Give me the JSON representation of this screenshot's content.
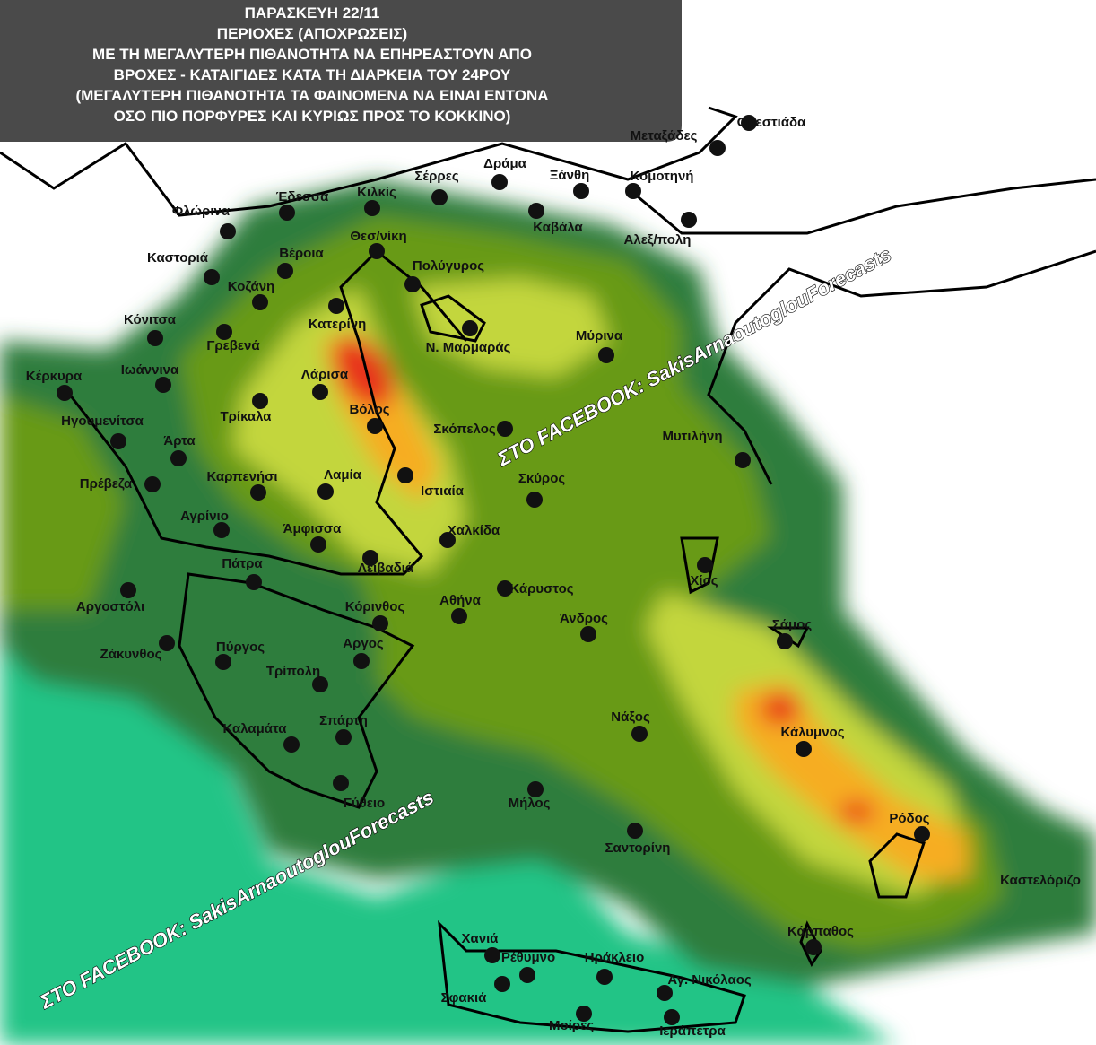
{
  "header": {
    "lines": [
      "ΠΑΡΑΣΚΕΥΗ  22/11",
      "ΠΕΡΙΟΧΕΣ (ΑΠΟΧΡΩΣΕΙΣ)",
      "ΜΕ ΤΗ ΜΕΓΑΛΥΤΕΡΗ ΠΙΘΑΝΟΤΗΤΑ ΝΑ ΕΠΗΡΕΑΣΤΟΥΝ ΑΠΟ",
      "ΒΡΟΧΕΣ - ΚΑΤΑΙΓΙΔΕΣ ΚΑΤΑ ΤΗ ΔΙΑΡΚΕΙΑ ΤΟΥ 24ΡΟΥ",
      "(ΜΕΓΑΛΥΤΕΡΗ ΠΙΘΑΝΟΤΗΤΑ ΤΑ ΦΑΙΝΟΜΕΝΑ ΝΑ ΕΙΝΑΙ ΕΝΤΟΝΑ",
      "ΟΣΟ ΠΙΟ ΠΟΡΦΥΡΕΣ ΚΑΙ ΚΥΡΙΩΣ ΠΡΟΣ ΤΟ ΚΟΚΚΙΝΟ)"
    ]
  },
  "cities": [
    {
      "label": "Μεταξάδες"
    },
    {
      "label": "Ορεστιάδα"
    },
    {
      "label": "Σέρρες"
    },
    {
      "label": "Δράμα"
    },
    {
      "label": "Ξάνθη"
    },
    {
      "label": "Κομοτηνή"
    },
    {
      "label": "Κιλκίς"
    },
    {
      "label": "Έδεσσα"
    },
    {
      "label": "Φλώρινα"
    },
    {
      "label": "Καβάλα"
    },
    {
      "label": "Αλεξ/πολη"
    },
    {
      "label": "Θεσ/νίκη"
    },
    {
      "label": "Βέροια"
    },
    {
      "label": "Καστοριά"
    },
    {
      "label": "Πολύγυρος"
    },
    {
      "label": "Κοζάνη"
    },
    {
      "label": "Κόνιτσα"
    },
    {
      "label": "Κατερίνη"
    },
    {
      "label": "Γρεβενά"
    },
    {
      "label": "Ν. Μαρμαράς"
    },
    {
      "label": "Μύρινα"
    },
    {
      "label": "Ιωάννινα"
    },
    {
      "label": "Κέρκυρα"
    },
    {
      "label": "Λάρισα"
    },
    {
      "label": "Βόλος"
    },
    {
      "label": "Τρίκαλα"
    },
    {
      "label": "Ηγουμενίτσα"
    },
    {
      "label": "Σκόπελος"
    },
    {
      "label": "Μυτιλήνη"
    },
    {
      "label": "Άρτα"
    },
    {
      "label": "Πρέβεζα"
    },
    {
      "label": "Καρπενήσι"
    },
    {
      "label": "Λαμία"
    },
    {
      "label": "Ιστιαία"
    },
    {
      "label": "Σκύρος"
    },
    {
      "label": "Αγρίνιο"
    },
    {
      "label": "Άμφισσα"
    },
    {
      "label": "Χαλκίδα"
    },
    {
      "label": "Πάτρα"
    },
    {
      "label": "Λειβαδιά"
    },
    {
      "label": "Χίος"
    },
    {
      "label": "Κάρυστος"
    },
    {
      "label": "Αργοστόλι"
    },
    {
      "label": "Κόρινθος"
    },
    {
      "label": "Αθήνα"
    },
    {
      "label": "Άνδρος"
    },
    {
      "label": "Σάμος"
    },
    {
      "label": "Ζάκυνθος"
    },
    {
      "label": "Πύργος"
    },
    {
      "label": "Αργος"
    },
    {
      "label": "Τρίπολη"
    },
    {
      "label": "Νάξος"
    },
    {
      "label": "Σπάρτη"
    },
    {
      "label": "Καλαμάτα"
    },
    {
      "label": "Κάλυμνος"
    },
    {
      "label": "Γύθειο"
    },
    {
      "label": "Μήλος"
    },
    {
      "label": "Ρόδος"
    },
    {
      "label": "Σαντορίνη"
    },
    {
      "label": "Καστελόριζο"
    },
    {
      "label": "Κάρπαθος"
    },
    {
      "label": "Χανιά"
    },
    {
      "label": "Ρέθυμνο"
    },
    {
      "label": "Ηράκλειο"
    },
    {
      "label": "Αγ. Νικόλαος"
    },
    {
      "label": "Σφακιά"
    },
    {
      "label": "Μοίρες"
    },
    {
      "label": "Ιεράπετρα"
    }
  ],
  "watermarks": [
    "ΣΤΟ FACEBOOK: SakisArnaoutoglouForecasts",
    "ΣΤΟ FACEBOOK: SakisArnaoutoglouForecasts"
  ]
}
